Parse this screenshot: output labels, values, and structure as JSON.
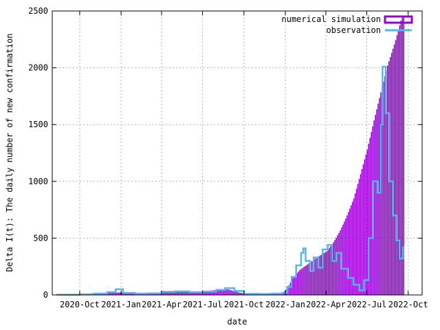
{
  "chart_data": {
    "type": "bar",
    "xlabel": "date",
    "ylabel": "Delta I(t): The daily number of new confirmation",
    "ylim": [
      0,
      2500
    ],
    "xlim": [
      "2020-08-01",
      "2022-11-01"
    ],
    "x_ticks": [
      {
        "date": "2020-10-01",
        "label": "2020-Oct"
      },
      {
        "date": "2021-01-01",
        "label": "2021-Jan"
      },
      {
        "date": "2021-04-01",
        "label": "2021-Apr"
      },
      {
        "date": "2021-07-01",
        "label": "2021-Jul"
      },
      {
        "date": "2021-10-01",
        "label": "2021-Oct"
      },
      {
        "date": "2022-01-01",
        "label": "2022-Jan"
      },
      {
        "date": "2022-04-01",
        "label": "2022-Apr"
      },
      {
        "date": "2022-07-01",
        "label": "2022-Jul"
      },
      {
        "date": "2022-10-01",
        "label": "2022-Oct"
      }
    ],
    "y_ticks": [
      0,
      500,
      1000,
      1500,
      2000,
      2500
    ],
    "grid": true,
    "legend_position": "top-right",
    "series": [
      {
        "name": "numerical simulation",
        "style": "bars",
        "color": "#9400d3",
        "points": [
          {
            "x": "2020-08-10",
            "y": 3
          },
          {
            "x": "2020-09-01",
            "y": 5
          },
          {
            "x": "2020-10-01",
            "y": 8
          },
          {
            "x": "2020-11-01",
            "y": 14
          },
          {
            "x": "2020-12-01",
            "y": 20
          },
          {
            "x": "2021-01-01",
            "y": 22
          },
          {
            "x": "2021-02-01",
            "y": 14
          },
          {
            "x": "2021-03-01",
            "y": 12
          },
          {
            "x": "2021-04-01",
            "y": 20
          },
          {
            "x": "2021-05-01",
            "y": 28
          },
          {
            "x": "2021-06-01",
            "y": 25
          },
          {
            "x": "2021-07-01",
            "y": 30
          },
          {
            "x": "2021-08-01",
            "y": 45
          },
          {
            "x": "2021-08-25",
            "y": 50
          },
          {
            "x": "2021-09-15",
            "y": 25
          },
          {
            "x": "2021-10-01",
            "y": 12
          },
          {
            "x": "2021-11-01",
            "y": 10
          },
          {
            "x": "2021-12-01",
            "y": 12
          },
          {
            "x": "2021-12-25",
            "y": 20
          },
          {
            "x": "2022-01-05",
            "y": 60
          },
          {
            "x": "2022-01-15",
            "y": 140
          },
          {
            "x": "2022-02-01",
            "y": 220
          },
          {
            "x": "2022-02-15",
            "y": 260
          },
          {
            "x": "2022-03-01",
            "y": 300
          },
          {
            "x": "2022-03-15",
            "y": 340
          },
          {
            "x": "2022-04-01",
            "y": 380
          },
          {
            "x": "2022-04-15",
            "y": 450
          },
          {
            "x": "2022-05-01",
            "y": 560
          },
          {
            "x": "2022-05-15",
            "y": 680
          },
          {
            "x": "2022-06-01",
            "y": 850
          },
          {
            "x": "2022-06-15",
            "y": 1050
          },
          {
            "x": "2022-07-01",
            "y": 1280
          },
          {
            "x": "2022-07-15",
            "y": 1520
          },
          {
            "x": "2022-08-01",
            "y": 1800
          },
          {
            "x": "2022-08-15",
            "y": 2020
          },
          {
            "x": "2022-09-01",
            "y": 2230
          },
          {
            "x": "2022-09-15",
            "y": 2430
          },
          {
            "x": "2022-09-22",
            "y": 2470
          }
        ]
      },
      {
        "name": "observation",
        "style": "steps",
        "color": "#56b4e9",
        "points": [
          {
            "x": "2020-08-10",
            "y": 2
          },
          {
            "x": "2020-10-01",
            "y": 5
          },
          {
            "x": "2020-11-01",
            "y": 12
          },
          {
            "x": "2020-12-01",
            "y": 25
          },
          {
            "x": "2020-12-20",
            "y": 50
          },
          {
            "x": "2021-01-05",
            "y": 18
          },
          {
            "x": "2021-02-01",
            "y": 12
          },
          {
            "x": "2021-03-01",
            "y": 14
          },
          {
            "x": "2021-04-01",
            "y": 28
          },
          {
            "x": "2021-05-01",
            "y": 32
          },
          {
            "x": "2021-06-01",
            "y": 25
          },
          {
            "x": "2021-07-01",
            "y": 30
          },
          {
            "x": "2021-08-01",
            "y": 45
          },
          {
            "x": "2021-08-20",
            "y": 60
          },
          {
            "x": "2021-09-10",
            "y": 35
          },
          {
            "x": "2021-10-01",
            "y": 10
          },
          {
            "x": "2021-11-01",
            "y": 8
          },
          {
            "x": "2021-12-01",
            "y": 12
          },
          {
            "x": "2021-12-25",
            "y": 18
          },
          {
            "x": "2022-01-05",
            "y": 70
          },
          {
            "x": "2022-01-15",
            "y": 160
          },
          {
            "x": "2022-01-25",
            "y": 260
          },
          {
            "x": "2022-02-05",
            "y": 370
          },
          {
            "x": "2022-02-10",
            "y": 410
          },
          {
            "x": "2022-02-15",
            "y": 300
          },
          {
            "x": "2022-02-25",
            "y": 210
          },
          {
            "x": "2022-03-05",
            "y": 330
          },
          {
            "x": "2022-03-15",
            "y": 240
          },
          {
            "x": "2022-03-25",
            "y": 400
          },
          {
            "x": "2022-04-05",
            "y": 440
          },
          {
            "x": "2022-04-15",
            "y": 300
          },
          {
            "x": "2022-04-25",
            "y": 370
          },
          {
            "x": "2022-05-05",
            "y": 230
          },
          {
            "x": "2022-05-20",
            "y": 150
          },
          {
            "x": "2022-06-01",
            "y": 90
          },
          {
            "x": "2022-06-15",
            "y": 40
          },
          {
            "x": "2022-06-25",
            "y": 130
          },
          {
            "x": "2022-07-05",
            "y": 500
          },
          {
            "x": "2022-07-15",
            "y": 1000
          },
          {
            "x": "2022-07-25",
            "y": 900
          },
          {
            "x": "2022-08-01",
            "y": 1500
          },
          {
            "x": "2022-08-05",
            "y": 2010
          },
          {
            "x": "2022-08-12",
            "y": 1600
          },
          {
            "x": "2022-08-20",
            "y": 1000
          },
          {
            "x": "2022-08-28",
            "y": 700
          },
          {
            "x": "2022-09-05",
            "y": 480
          },
          {
            "x": "2022-09-12",
            "y": 320
          },
          {
            "x": "2022-09-20",
            "y": 430
          }
        ]
      }
    ]
  }
}
